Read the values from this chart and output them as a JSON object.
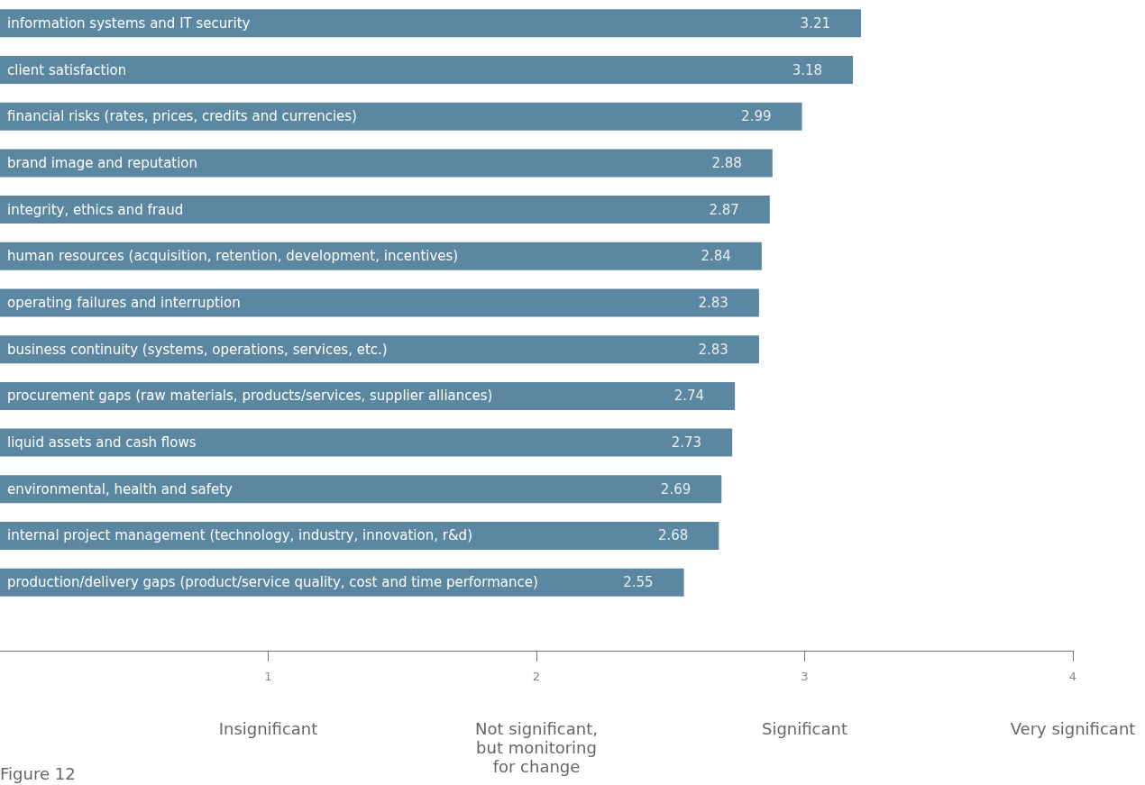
{
  "chart_data": {
    "type": "bar",
    "orientation": "horizontal",
    "categories": [
      "information systems and IT security",
      "client satisfaction",
      "financial risks (rates, prices, credits and currencies)",
      "brand image and reputation",
      "integrity, ethics and fraud",
      "human resources (acquisition, retention, development, incentives)",
      "operating failures and interruption",
      "business continuity (systems, operations, services, etc.)",
      "procurement gaps (raw materials, products/services, supplier alliances)",
      "liquid assets and cash flows",
      "environmental, health and safety",
      "internal project management (technology, industry, innovation, r&d)",
      "production/delivery gaps (product/service quality, cost and time performance)"
    ],
    "values": [
      3.21,
      3.18,
      2.99,
      2.88,
      2.87,
      2.84,
      2.83,
      2.83,
      2.74,
      2.73,
      2.69,
      2.68,
      2.55
    ],
    "color": "#5b87a0",
    "xlim": [
      0,
      4
    ],
    "xticks": [
      1,
      2,
      3,
      4
    ],
    "data_labels": true,
    "grid": false,
    "annotations": [
      "Insignificant",
      "Not significant,\nbut monitoring\nfor change",
      "Significant",
      "Very significant",
      "Figure 12"
    ]
  }
}
